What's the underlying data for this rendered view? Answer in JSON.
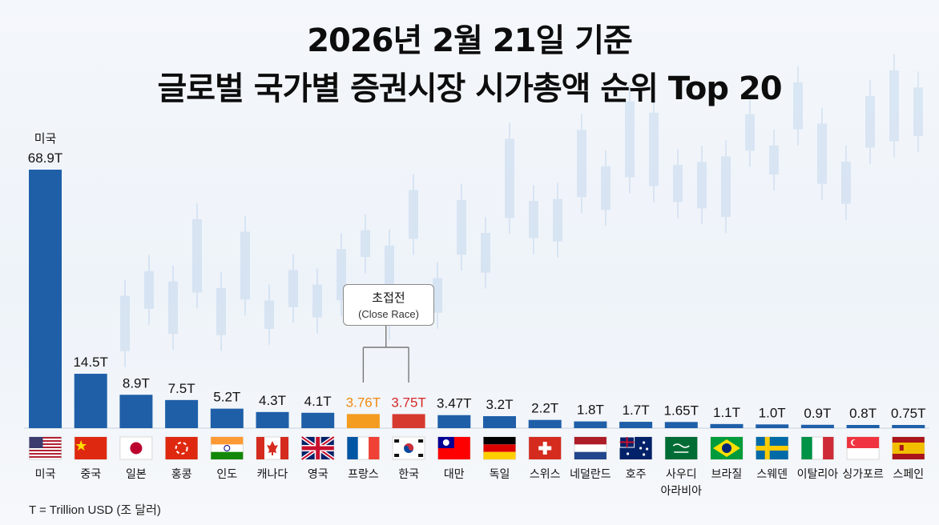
{
  "title_line1": "2026년 2월 21일 기준",
  "title_line2": "글로벌 국가별 증권시장 시가총액 순위 Top 20",
  "callout": {
    "korean": "초접전",
    "english": "(Close Race)"
  },
  "footnote": "T = Trillion USD (조 달러)",
  "colors": {
    "bar": "#1f5fa8",
    "france_bar": "#f39c1f",
    "korea_bar": "#d63a2f",
    "france_label": "#ef8a12",
    "korea_label": "#d62828"
  },
  "chart_data": {
    "type": "bar",
    "title": "2026년 2월 21일 기준 글로벌 국가별 증권시장 시가총액 순위 Top 20",
    "unit": "T",
    "categories": [
      "미국",
      "중국",
      "일본",
      "홍콩",
      "인도",
      "캐나다",
      "영국",
      "프랑스",
      "한국",
      "대만",
      "독일",
      "스위스",
      "네덜란드",
      "호주",
      "사우디 아라비아",
      "브라질",
      "스웨덴",
      "이탈리아",
      "싱가포르",
      "스페인"
    ],
    "values": [
      68.9,
      14.5,
      8.9,
      7.5,
      5.2,
      4.3,
      4.1,
      3.76,
      3.75,
      3.47,
      3.2,
      2.2,
      1.8,
      1.7,
      1.65,
      1.1,
      1.0,
      0.9,
      0.8,
      0.75
    ],
    "value_labels": [
      "68.9T",
      "14.5T",
      "8.9T",
      "7.5T",
      "5.2T",
      "4.3T",
      "4.1T",
      "3.76T",
      "3.75T",
      "3.47T",
      "3.2T",
      "2.2T",
      "1.8T",
      "1.7T",
      "1.65T",
      "1.1T",
      "1.0T",
      "0.9T",
      "0.8T",
      "0.75T"
    ],
    "flag_icons": [
      "us-flag-icon",
      "china-flag-icon",
      "japan-flag-icon",
      "hong-kong-flag-icon",
      "india-flag-icon",
      "canada-flag-icon",
      "uk-flag-icon",
      "france-flag-icon",
      "korea-flag-icon",
      "taiwan-flag-icon",
      "germany-flag-icon",
      "switzerland-flag-icon",
      "netherlands-flag-icon",
      "australia-flag-icon",
      "saudi-arabia-flag-icon",
      "brazil-flag-icon",
      "sweden-flag-icon",
      "italy-flag-icon",
      "singapore-flag-icon",
      "spain-flag-icon"
    ],
    "top_label": "미국",
    "ylim": [
      0,
      68.9
    ]
  }
}
